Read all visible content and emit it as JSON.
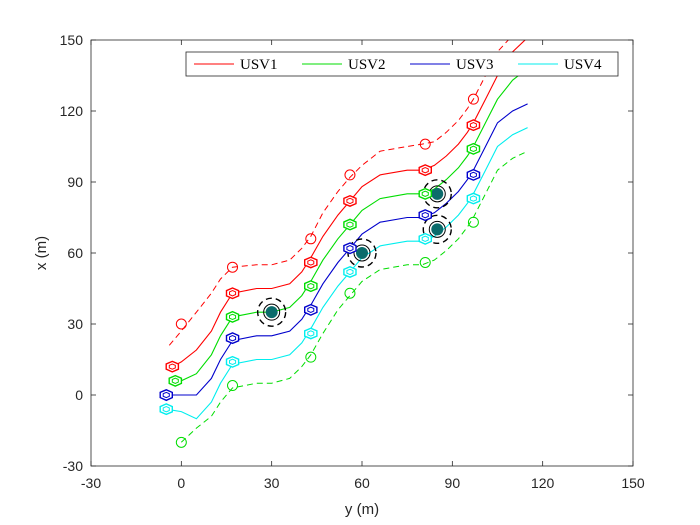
{
  "chart_data": {
    "type": "line",
    "title": "",
    "xlabel": "y (m)",
    "ylabel": "x (m)",
    "xlim": [
      -30,
      150
    ],
    "ylim": [
      -30,
      150
    ],
    "xticks": [
      -30,
      0,
      30,
      60,
      90,
      120,
      150
    ],
    "yticks": [
      -30,
      0,
      30,
      60,
      90,
      120,
      150
    ],
    "xtick_labels": [
      "-30",
      "0",
      "30",
      "60",
      "90",
      "120",
      "150"
    ],
    "ytick_labels": [
      "-30",
      "0",
      "30",
      "60",
      "90",
      "120",
      "150"
    ],
    "grid": false,
    "legend": {
      "position": "top-right",
      "orientation": "horizontal"
    },
    "colors": {
      "USV1": "#ff0000",
      "USV2": "#00dd00",
      "USV3": "#0000cc",
      "USV4": "#00eeee",
      "obstacle": "#0b6b6b",
      "axis": "#262626"
    },
    "series": [
      {
        "name": "USV1",
        "color": "#ff0000",
        "offset": 10,
        "start_x": -3,
        "path": [
          [
            -3,
            12
          ],
          [
            0,
            14
          ],
          [
            5,
            19
          ],
          [
            10,
            27
          ],
          [
            13,
            35
          ],
          [
            17,
            43
          ],
          [
            25,
            45
          ],
          [
            30,
            45
          ],
          [
            36,
            47
          ],
          [
            40,
            52
          ],
          [
            43,
            58
          ],
          [
            47,
            67
          ],
          [
            52,
            76
          ],
          [
            56,
            82
          ],
          [
            60,
            88
          ],
          [
            66,
            93
          ],
          [
            75,
            95
          ],
          [
            80,
            95
          ],
          [
            84,
            97
          ],
          [
            88,
            101
          ],
          [
            92,
            106
          ],
          [
            95,
            111
          ],
          [
            97,
            115
          ],
          [
            101,
            125
          ],
          [
            105,
            135
          ],
          [
            110,
            145
          ],
          [
            115,
            151
          ]
        ],
        "vessels": [
          [
            -3,
            12
          ],
          [
            17,
            43
          ],
          [
            43,
            56
          ],
          [
            56,
            82
          ],
          [
            81,
            95
          ],
          [
            97,
            114
          ]
        ]
      },
      {
        "name": "USV2",
        "color": "#00dd00",
        "offset": 0,
        "start_x": -2,
        "path": [
          [
            -2,
            6
          ],
          [
            0,
            6
          ],
          [
            5,
            9
          ],
          [
            10,
            17
          ],
          [
            13,
            25
          ],
          [
            17,
            33
          ],
          [
            25,
            35
          ],
          [
            30,
            35
          ],
          [
            36,
            37
          ],
          [
            40,
            42
          ],
          [
            43,
            48
          ],
          [
            47,
            57
          ],
          [
            52,
            66
          ],
          [
            56,
            72
          ],
          [
            60,
            78
          ],
          [
            66,
            83
          ],
          [
            75,
            85
          ],
          [
            80,
            85
          ],
          [
            84,
            87
          ],
          [
            88,
            91
          ],
          [
            92,
            96
          ],
          [
            95,
            101
          ],
          [
            97,
            105
          ],
          [
            101,
            115
          ],
          [
            105,
            125
          ],
          [
            110,
            133
          ],
          [
            115,
            138
          ]
        ],
        "vessels": [
          [
            -2,
            6
          ],
          [
            17,
            33
          ],
          [
            43,
            46
          ],
          [
            56,
            72
          ],
          [
            81,
            85
          ],
          [
            97,
            104
          ]
        ]
      },
      {
        "name": "USV3",
        "color": "#0000cc",
        "offset": -10,
        "start_x": -5,
        "path": [
          [
            -5,
            0
          ],
          [
            0,
            0
          ],
          [
            5,
            0
          ],
          [
            10,
            7
          ],
          [
            13,
            15
          ],
          [
            17,
            23
          ],
          [
            25,
            25
          ],
          [
            30,
            25
          ],
          [
            36,
            27
          ],
          [
            40,
            32
          ],
          [
            43,
            38
          ],
          [
            47,
            47
          ],
          [
            52,
            56
          ],
          [
            56,
            62
          ],
          [
            60,
            68
          ],
          [
            66,
            73
          ],
          [
            75,
            75
          ],
          [
            80,
            75
          ],
          [
            84,
            77
          ],
          [
            88,
            81
          ],
          [
            92,
            86
          ],
          [
            95,
            91
          ],
          [
            97,
            95
          ],
          [
            101,
            105
          ],
          [
            105,
            115
          ],
          [
            110,
            120
          ],
          [
            115,
            123
          ]
        ],
        "vessels": [
          [
            -5,
            0
          ],
          [
            17,
            24
          ],
          [
            43,
            36
          ],
          [
            56,
            62
          ],
          [
            81,
            76
          ],
          [
            97,
            93
          ]
        ]
      },
      {
        "name": "USV4",
        "color": "#00eeee",
        "offset": -20,
        "start_x": -5,
        "path": [
          [
            -5,
            -6
          ],
          [
            0,
            -7
          ],
          [
            5,
            -10
          ],
          [
            10,
            -3
          ],
          [
            13,
            5
          ],
          [
            17,
            13
          ],
          [
            25,
            15
          ],
          [
            30,
            15
          ],
          [
            36,
            17
          ],
          [
            40,
            22
          ],
          [
            43,
            28
          ],
          [
            47,
            37
          ],
          [
            52,
            46
          ],
          [
            56,
            52
          ],
          [
            60,
            58
          ],
          [
            66,
            63
          ],
          [
            75,
            65
          ],
          [
            80,
            65
          ],
          [
            84,
            67
          ],
          [
            88,
            71
          ],
          [
            92,
            76
          ],
          [
            95,
            81
          ],
          [
            97,
            85
          ],
          [
            101,
            95
          ],
          [
            105,
            105
          ],
          [
            110,
            110
          ],
          [
            115,
            113
          ]
        ],
        "vessels": [
          [
            -5,
            -6
          ],
          [
            17,
            14
          ],
          [
            43,
            26
          ],
          [
            56,
            52
          ],
          [
            81,
            66
          ],
          [
            97,
            83
          ]
        ]
      }
    ],
    "formation_bounds": [
      {
        "color": "#ff0000",
        "style": "dashed",
        "path": [
          [
            -4,
            21
          ],
          [
            0,
            27
          ],
          [
            5,
            35
          ],
          [
            10,
            43
          ],
          [
            13,
            49
          ],
          [
            17,
            54
          ],
          [
            25,
            55
          ],
          [
            30,
            55
          ],
          [
            36,
            57
          ],
          [
            40,
            62
          ],
          [
            43,
            67
          ],
          [
            47,
            77
          ],
          [
            52,
            86
          ],
          [
            56,
            92
          ],
          [
            60,
            97
          ],
          [
            66,
            103
          ],
          [
            75,
            105
          ],
          [
            80,
            106
          ],
          [
            84,
            107
          ],
          [
            88,
            111
          ],
          [
            92,
            116
          ],
          [
            95,
            121
          ],
          [
            97,
            125
          ],
          [
            101,
            135
          ],
          [
            105,
            145
          ],
          [
            110,
            152
          ]
        ],
        "markers": [
          [
            0,
            30
          ],
          [
            17,
            54
          ],
          [
            43,
            66
          ],
          [
            56,
            93
          ],
          [
            81,
            106
          ],
          [
            97,
            125
          ]
        ]
      },
      {
        "color": "#00dd00",
        "style": "dashed",
        "path": [
          [
            0,
            -20
          ],
          [
            5,
            -14
          ],
          [
            10,
            -9
          ],
          [
            13,
            -3
          ],
          [
            17,
            3
          ],
          [
            25,
            5
          ],
          [
            30,
            5
          ],
          [
            36,
            7
          ],
          [
            40,
            12
          ],
          [
            43,
            17
          ],
          [
            47,
            26
          ],
          [
            52,
            36
          ],
          [
            56,
            42
          ],
          [
            60,
            48
          ],
          [
            66,
            53
          ],
          [
            75,
            55
          ],
          [
            80,
            55
          ],
          [
            84,
            57
          ],
          [
            88,
            61
          ],
          [
            92,
            66
          ],
          [
            95,
            71
          ],
          [
            97,
            75
          ],
          [
            101,
            85
          ],
          [
            105,
            95
          ],
          [
            110,
            100
          ],
          [
            115,
            103
          ]
        ],
        "markers": [
          [
            0,
            -20
          ],
          [
            17,
            4
          ],
          [
            43,
            16
          ],
          [
            56,
            43
          ],
          [
            81,
            56
          ],
          [
            97,
            73
          ]
        ]
      }
    ],
    "obstacles": [
      {
        "y": 30,
        "x": 35
      },
      {
        "y": 60,
        "x": 60
      },
      {
        "y": 85,
        "x": 85
      },
      {
        "y": 85,
        "x": 70
      }
    ]
  }
}
